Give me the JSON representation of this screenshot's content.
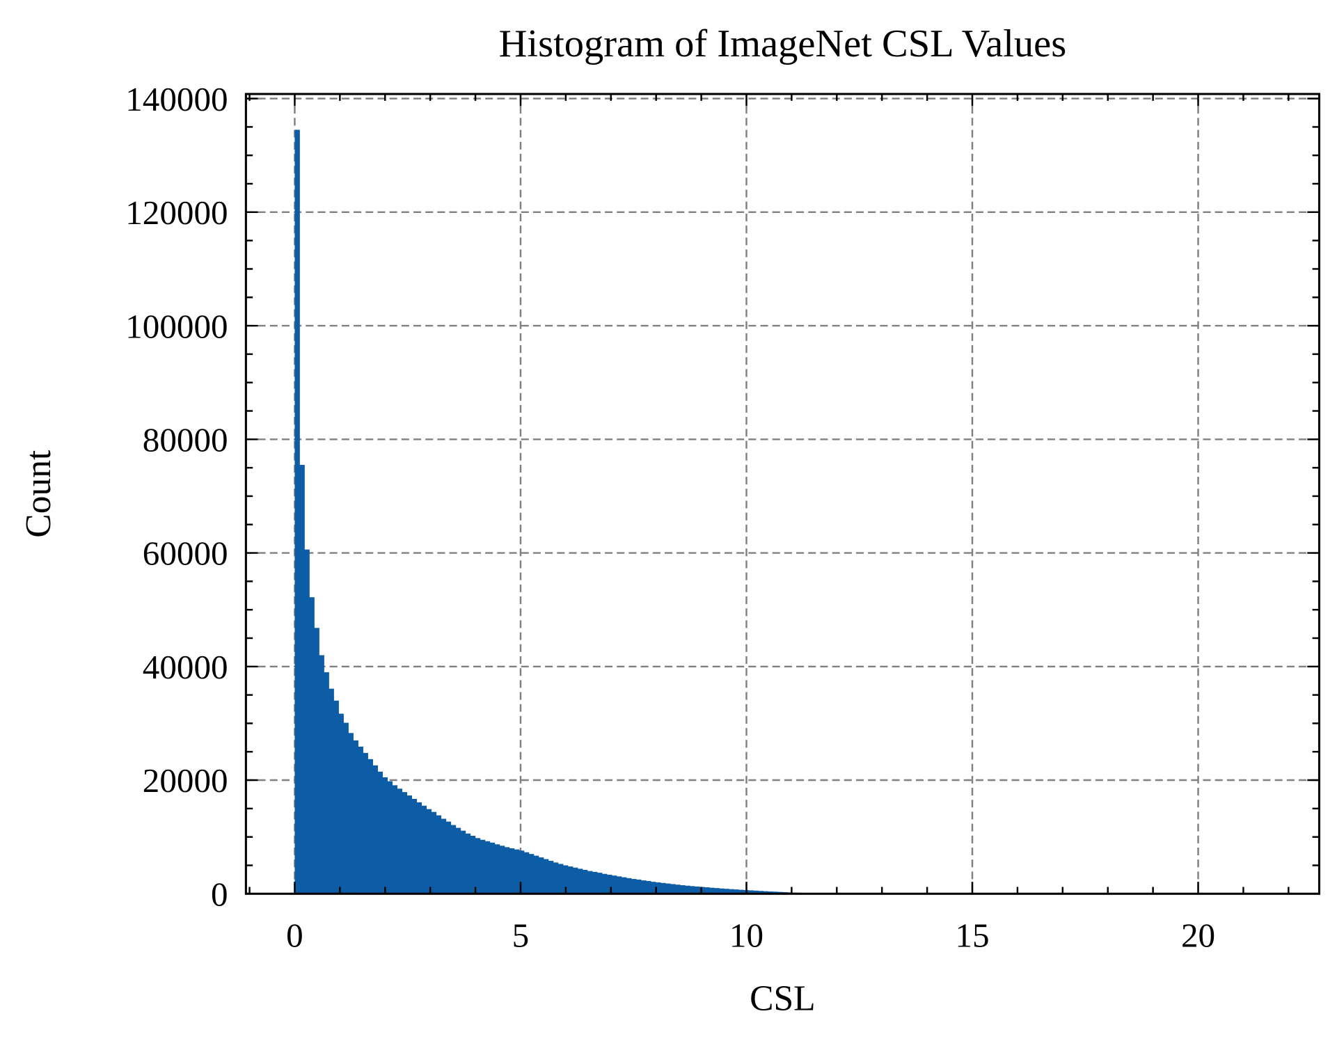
{
  "chart_data": {
    "type": "bar",
    "histogram": true,
    "title": "Histogram of ImageNet CSL Values",
    "xlabel": "CSL",
    "ylabel": "Count",
    "xlim": [
      -1.08,
      22.68
    ],
    "ylim": [
      0,
      140800
    ],
    "xticks": [
      0,
      5,
      10,
      15,
      20
    ],
    "xtick_labels": [
      "0",
      "5",
      "10",
      "15",
      "20"
    ],
    "x_minor_step": 1,
    "yticks": [
      0,
      20000,
      40000,
      60000,
      80000,
      100000,
      120000,
      140000
    ],
    "ytick_labels": [
      "0",
      "20000",
      "40000",
      "60000",
      "80000",
      "100000",
      "120000",
      "140000"
    ],
    "y_minor_step": 5000,
    "grid": true,
    "bar_color": "#0C5DA5",
    "bin_range": [
      0,
      21.6
    ],
    "bins": 200,
    "values": [
      134500,
      75500,
      60600,
      52200,
      46800,
      42000,
      39000,
      36100,
      34000,
      31700,
      30100,
      28300,
      27000,
      25900,
      24800,
      23700,
      22600,
      21500,
      20500,
      19800,
      19100,
      18500,
      17900,
      17300,
      16700,
      16100,
      15500,
      14900,
      14400,
      13800,
      13200,
      12700,
      12100,
      11600,
      11100,
      10600,
      10200,
      9800,
      9500,
      9250,
      9000,
      8700,
      8450,
      8200,
      8000,
      7800,
      7600,
      7300,
      7000,
      6700,
      6400,
      6100,
      5800,
      5500,
      5250,
      5000,
      4800,
      4600,
      4400,
      4200,
      4000,
      3850,
      3700,
      3500,
      3350,
      3200,
      3050,
      2900,
      2750,
      2600,
      2500,
      2350,
      2250,
      2100,
      2000,
      1900,
      1800,
      1700,
      1600,
      1500,
      1420,
      1340,
      1270,
      1200,
      1130,
      1060,
      1000,
      930,
      870,
      810,
      760,
      700,
      650,
      600,
      550,
      500,
      450,
      400,
      360,
      320,
      280,
      240,
      200,
      170,
      140,
      115,
      90,
      70,
      55,
      40,
      30,
      22,
      16,
      12,
      9,
      7,
      5,
      4,
      3,
      2,
      2,
      1,
      1,
      1,
      0,
      1,
      0,
      0,
      1,
      0,
      0,
      0,
      1,
      0,
      0,
      0,
      0,
      0,
      0,
      0,
      0,
      0,
      0,
      0,
      0,
      0,
      0,
      0,
      0,
      0,
      0,
      0,
      0,
      0,
      0,
      0,
      0,
      0,
      0,
      0,
      0,
      0,
      0,
      0,
      0,
      0,
      0,
      0,
      0,
      0,
      0,
      0,
      0,
      0,
      0,
      0,
      0,
      0,
      0,
      0,
      0,
      0,
      0,
      0,
      0,
      0,
      0,
      0,
      0,
      0,
      0,
      0,
      0,
      0,
      0,
      0,
      0,
      0,
      0,
      1
    ]
  }
}
